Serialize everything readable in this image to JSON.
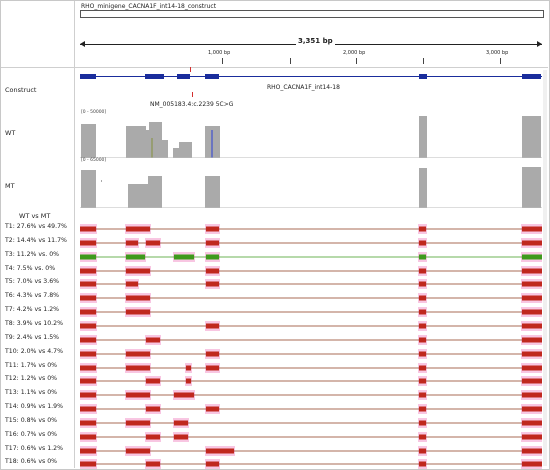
{
  "header": {
    "construct_title": "RHO_minigene_CACNA1F_int14-18_construct",
    "span_label": "3,351 bp",
    "ticks": [
      "1,000 bp",
      "2,000 bp",
      "3,000 bp"
    ]
  },
  "tracks": {
    "construct": {
      "label": "Construct",
      "gene_name": "RHO_CACNA1F_int14-18",
      "variant_label": "NM_005183.4:c.2239 5C>G"
    },
    "wt": {
      "label": "WT",
      "range": "[0 - 50000]"
    },
    "mt": {
      "label": "MT",
      "range": "[0 - 65000]"
    },
    "comparison_label": "WT vs MT"
  },
  "colors": {
    "gene": "#1a2d9c",
    "coverage": "#aaaaaa",
    "isoform_red": "#c0281e",
    "isoform_green": "#3e9a1c",
    "pink_halo": "#f8c6e2",
    "variant": "#d32f2f"
  },
  "isoforms": [
    {
      "label": "T1: 27.6% vs 49.7%",
      "color": "red"
    },
    {
      "label": "T2: 14.4% vs 11.7%",
      "color": "red"
    },
    {
      "label": "T3: 11.2% vs. 0%",
      "color": "green"
    },
    {
      "label": "T4: 7.5% vs. 0%",
      "color": "red"
    },
    {
      "label": "T5: 7.0% vs 3.6%",
      "color": "red"
    },
    {
      "label": "T6: 4.3% vs 7.8%",
      "color": "red"
    },
    {
      "label": "T7: 4.2% vs 1.2%",
      "color": "red"
    },
    {
      "label": "T8: 3.9% vs 10.2%",
      "color": "red"
    },
    {
      "label": "T9: 2.4% vs 1.5%",
      "color": "red"
    },
    {
      "label": "T10: 2.0% vs 4.7%",
      "color": "red"
    },
    {
      "label": "T11: 1.7% vs 0%",
      "color": "red"
    },
    {
      "label": "T12: 1.2% vs 0%",
      "color": "red"
    },
    {
      "label": "T13: 1.1% vs 0%",
      "color": "red"
    },
    {
      "label": "T14: 0.9% vs 1.9%",
      "color": "red"
    },
    {
      "label": "T15: 0.8% vs 0%",
      "color": "red"
    },
    {
      "label": "T16: 0.7% vs 0%",
      "color": "red"
    },
    {
      "label": "T17: 0.6% vs 1.2%",
      "color": "red"
    },
    {
      "label": "T18: 0.6% vs 0%",
      "color": "red"
    }
  ]
}
